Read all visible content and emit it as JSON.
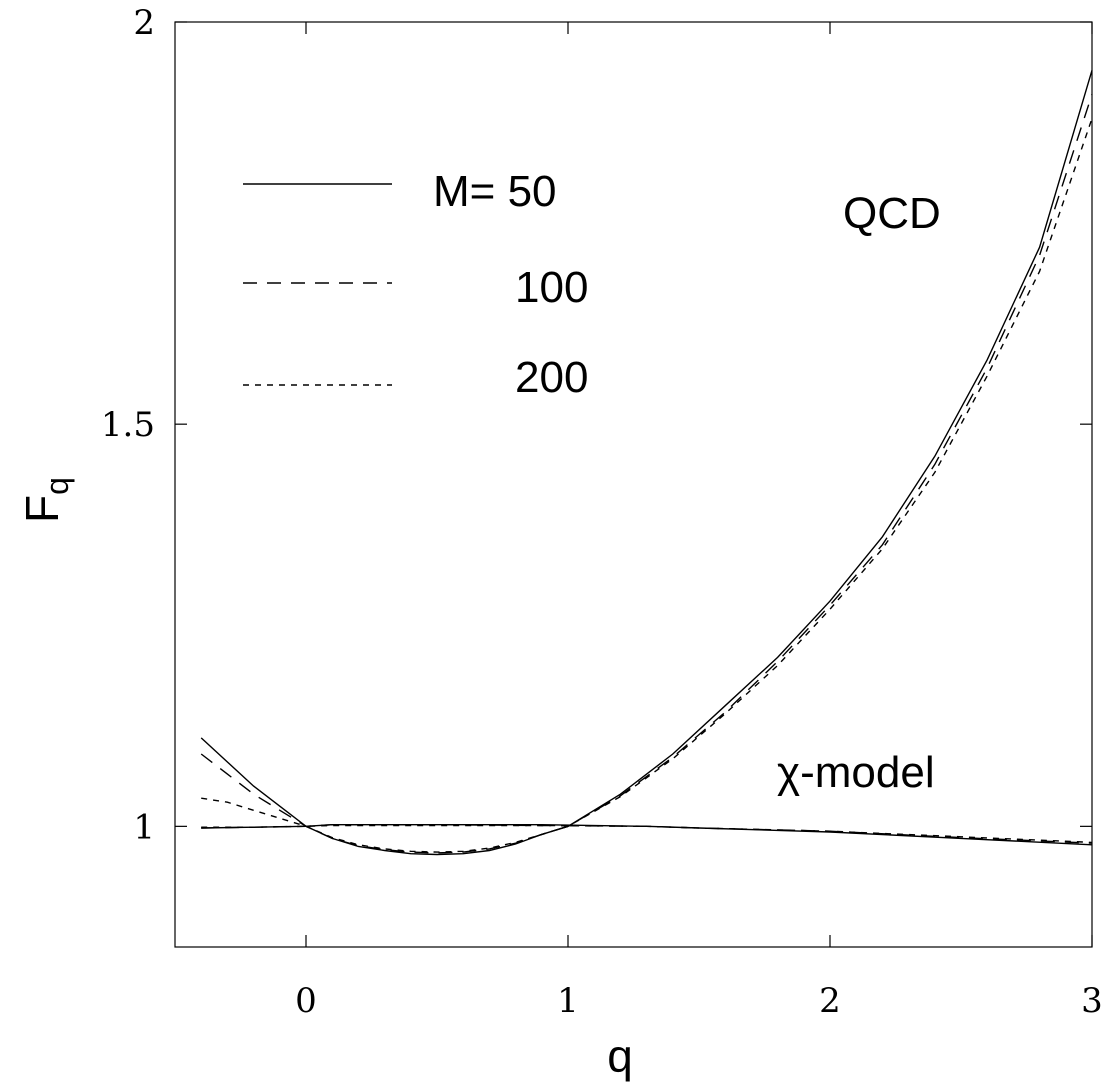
{
  "chart_data": {
    "type": "line",
    "xlabel": "q",
    "ylabel": "F",
    "ylabel_sub": "q",
    "xlim": [
      -0.5,
      3
    ],
    "ylim": [
      0.85,
      2.0
    ],
    "xticks": [
      0,
      1,
      2,
      3
    ],
    "xtick_labels": [
      "0",
      "1",
      "2",
      "3"
    ],
    "yticks": [
      1,
      1.5,
      2
    ],
    "ytick_labels": [
      "1",
      "1.5",
      "2"
    ],
    "legend": {
      "placement": "top-left",
      "entries": [
        {
          "label": "M= 50",
          "style": "solid"
        },
        {
          "label": "100",
          "style": "long-dash"
        },
        {
          "label": "200",
          "style": "short-dash"
        }
      ]
    },
    "annotations": {
      "qcd": "QCD",
      "chi_model": "χ-model"
    },
    "groups": [
      {
        "group": "QCD",
        "series": [
          {
            "style": "solid",
            "x": [
              -0.4,
              -0.3,
              -0.2,
              -0.1,
              0,
              0.1,
              0.2,
              0.3,
              0.4,
              0.5,
              0.6,
              0.7,
              0.8,
              0.9,
              1.0,
              1.2,
              1.4,
              1.6,
              1.8,
              2.0,
              2.2,
              2.4,
              2.6,
              2.8,
              3.0
            ],
            "y": [
              1.11,
              1.08,
              1.05,
              1.025,
              1.0,
              0.985,
              0.975,
              0.97,
              0.966,
              0.965,
              0.966,
              0.97,
              0.978,
              0.99,
              1.0,
              1.04,
              1.09,
              1.15,
              1.21,
              1.28,
              1.36,
              1.46,
              1.58,
              1.72,
              1.94
            ]
          },
          {
            "style": "long-dash",
            "x": [
              -0.4,
              -0.3,
              -0.2,
              -0.1,
              0,
              0.1,
              0.2,
              0.3,
              0.4,
              0.5,
              0.6,
              0.7,
              0.8,
              0.9,
              1.0,
              1.2,
              1.4,
              1.6,
              1.8,
              2.0,
              2.2,
              2.4,
              2.6,
              2.8,
              3.0
            ],
            "y": [
              1.09,
              1.065,
              1.04,
              1.02,
              1.0,
              0.985,
              0.976,
              0.971,
              0.968,
              0.967,
              0.968,
              0.972,
              0.979,
              0.99,
              1.0,
              1.038,
              1.086,
              1.142,
              1.205,
              1.275,
              1.35,
              1.45,
              1.57,
              1.71,
              1.91
            ]
          },
          {
            "style": "short-dash",
            "x": [
              -0.4,
              -0.3,
              -0.2,
              -0.1,
              0,
              0.1,
              0.2,
              0.3,
              0.4,
              0.5,
              0.6,
              0.7,
              0.8,
              0.9,
              1.0,
              1.2,
              1.4,
              1.6,
              1.8,
              2.0,
              2.2,
              2.4,
              2.6,
              2.8,
              3.0
            ],
            "y": [
              1.035,
              1.03,
              1.02,
              1.01,
              1.0,
              0.986,
              0.977,
              0.972,
              0.969,
              0.968,
              0.969,
              0.973,
              0.98,
              0.99,
              1.0,
              1.037,
              1.084,
              1.14,
              1.2,
              1.27,
              1.345,
              1.44,
              1.56,
              1.69,
              1.88
            ]
          }
        ]
      },
      {
        "group": "χ-model",
        "series": [
          {
            "style": "solid",
            "x": [
              -0.4,
              -0.2,
              0,
              0.1,
              0.5,
              0.9,
              1.3,
              1.5,
              2.0,
              2.5,
              3.0
            ],
            "y": [
              0.998,
              0.999,
              1.0,
              1.002,
              1.002,
              1.002,
              1.0,
              0.998,
              0.993,
              0.985,
              0.977
            ]
          },
          {
            "style": "long-dash",
            "x": [
              -0.4,
              -0.2,
              0,
              0.1,
              0.5,
              0.9,
              1.3,
              1.5,
              2.0,
              2.5,
              3.0
            ],
            "y": [
              0.998,
              0.999,
              1.0,
              1.002,
              1.002,
              1.001,
              1.0,
              0.998,
              0.994,
              0.986,
              0.979
            ]
          },
          {
            "style": "short-dash",
            "x": [
              -0.4,
              -0.2,
              0,
              0.1,
              0.5,
              0.9,
              1.3,
              1.5,
              2.0,
              2.5,
              3.0
            ],
            "y": [
              0.999,
              0.999,
              1.0,
              1.001,
              1.001,
              1.001,
              1.0,
              0.998,
              0.994,
              0.987,
              0.98
            ]
          }
        ]
      }
    ]
  }
}
